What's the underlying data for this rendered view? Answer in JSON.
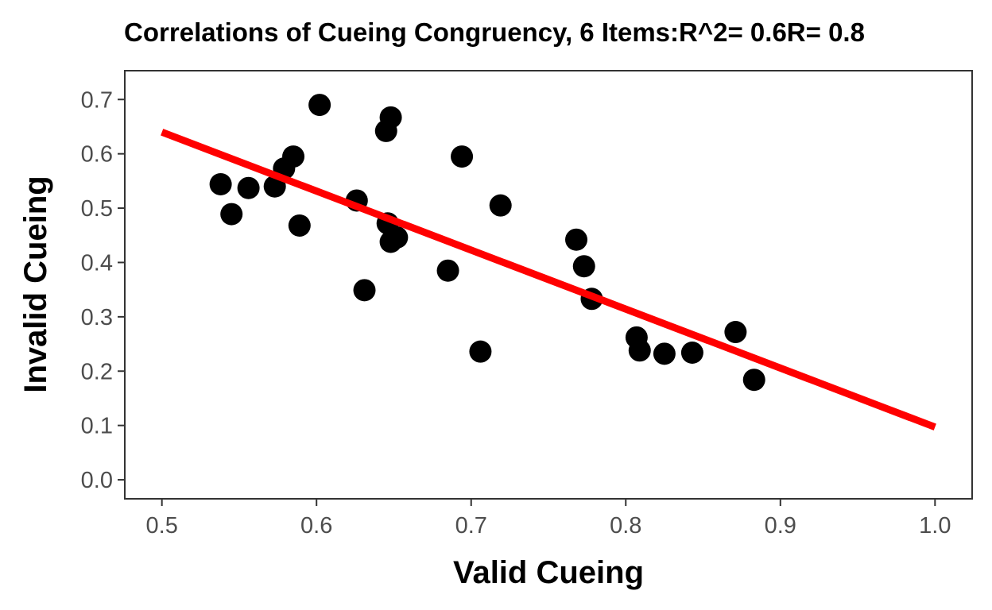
{
  "chart_data": {
    "type": "scatter",
    "title": "Correlations of Cueing Congruency, 6 Items:R^2= 0.6R= 0.8",
    "xlabel": "Valid Cueing",
    "ylabel": "Invalid Cueing",
    "xlim": [
      0.476,
      1.024
    ],
    "ylim": [
      -0.035,
      0.753
    ],
    "x_ticks": [
      0.5,
      0.6,
      0.7,
      0.8,
      0.9,
      1.0
    ],
    "x_tick_labels": [
      "0.5",
      "0.6",
      "0.7",
      "0.8",
      "0.9",
      "1.0"
    ],
    "y_ticks": [
      0.0,
      0.1,
      0.2,
      0.3,
      0.4,
      0.5,
      0.6,
      0.7
    ],
    "y_tick_labels": [
      "0.0",
      "0.1",
      "0.2",
      "0.3",
      "0.4",
      "0.5",
      "0.6",
      "0.7"
    ],
    "grid": false,
    "point_color": "#000000",
    "line_color": "#ff0000",
    "points": [
      {
        "x": 0.538,
        "y": 0.544
      },
      {
        "x": 0.545,
        "y": 0.489
      },
      {
        "x": 0.556,
        "y": 0.537
      },
      {
        "x": 0.573,
        "y": 0.54
      },
      {
        "x": 0.579,
        "y": 0.573
      },
      {
        "x": 0.585,
        "y": 0.595
      },
      {
        "x": 0.589,
        "y": 0.468
      },
      {
        "x": 0.602,
        "y": 0.69
      },
      {
        "x": 0.626,
        "y": 0.514
      },
      {
        "x": 0.631,
        "y": 0.349
      },
      {
        "x": 0.645,
        "y": 0.642
      },
      {
        "x": 0.648,
        "y": 0.667
      },
      {
        "x": 0.646,
        "y": 0.472
      },
      {
        "x": 0.648,
        "y": 0.438
      },
      {
        "x": 0.652,
        "y": 0.446
      },
      {
        "x": 0.685,
        "y": 0.385
      },
      {
        "x": 0.694,
        "y": 0.595
      },
      {
        "x": 0.706,
        "y": 0.236
      },
      {
        "x": 0.719,
        "y": 0.505
      },
      {
        "x": 0.768,
        "y": 0.442
      },
      {
        "x": 0.773,
        "y": 0.393
      },
      {
        "x": 0.778,
        "y": 0.333
      },
      {
        "x": 0.807,
        "y": 0.262
      },
      {
        "x": 0.809,
        "y": 0.238
      },
      {
        "x": 0.825,
        "y": 0.232
      },
      {
        "x": 0.843,
        "y": 0.234
      },
      {
        "x": 0.871,
        "y": 0.272
      },
      {
        "x": 0.883,
        "y": 0.184
      }
    ],
    "fit_line": {
      "x": [
        0.5,
        1.0
      ],
      "y": [
        0.64,
        0.097
      ]
    }
  }
}
